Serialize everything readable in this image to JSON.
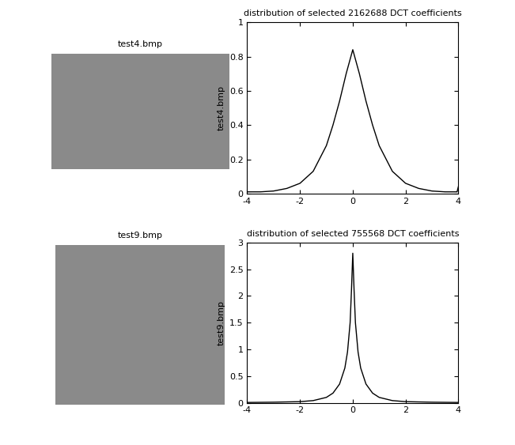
{
  "chart_data": [
    {
      "type": "line",
      "title": "distribution of selected 2162688 DCT coefficients",
      "y_label": "test4.bmp",
      "x": [
        -4,
        -3.5,
        -3,
        -2.5,
        -2,
        -1.5,
        -1,
        -0.75,
        -0.5,
        -0.25,
        0,
        0.25,
        0.5,
        0.75,
        1,
        1.5,
        2,
        2.5,
        3,
        3.5,
        3.95,
        4
      ],
      "values": [
        0.01,
        0.01,
        0.015,
        0.03,
        0.06,
        0.13,
        0.28,
        0.4,
        0.54,
        0.7,
        0.84,
        0.7,
        0.54,
        0.4,
        0.28,
        0.13,
        0.06,
        0.03,
        0.015,
        0.01,
        0.01,
        0.04
      ],
      "color": "#000000",
      "xlim": [
        -4,
        4
      ],
      "xticks": [
        -4,
        -2,
        0,
        2,
        4
      ],
      "ylim": [
        0,
        1
      ],
      "yticks": [
        0,
        0.2,
        0.4,
        0.6,
        0.8,
        1
      ]
    },
    {
      "type": "line",
      "title": "distribution of selected 755568 DCT coefficients",
      "y_label": "test9.bmp",
      "x": [
        -4,
        -3,
        -2,
        -1.5,
        -1,
        -0.75,
        -0.5,
        -0.3,
        -0.2,
        -0.1,
        -0.05,
        0,
        0.05,
        0.1,
        0.2,
        0.3,
        0.5,
        0.75,
        1,
        1.5,
        2,
        3,
        4
      ],
      "values": [
        0.005,
        0.01,
        0.02,
        0.04,
        0.1,
        0.18,
        0.35,
        0.65,
        0.95,
        1.5,
        2.1,
        2.8,
        2.1,
        1.5,
        0.95,
        0.65,
        0.35,
        0.18,
        0.1,
        0.04,
        0.02,
        0.01,
        0.005
      ],
      "color": "#000000",
      "xlim": [
        -4,
        4
      ],
      "xticks": [
        -4,
        -2,
        0,
        2,
        4
      ],
      "ylim": [
        0,
        3
      ],
      "yticks": [
        0,
        0.5,
        1,
        1.5,
        2,
        2.5,
        3
      ]
    }
  ],
  "images": [
    {
      "title": "test4.bmp"
    },
    {
      "title": "test9.bmp"
    }
  ]
}
